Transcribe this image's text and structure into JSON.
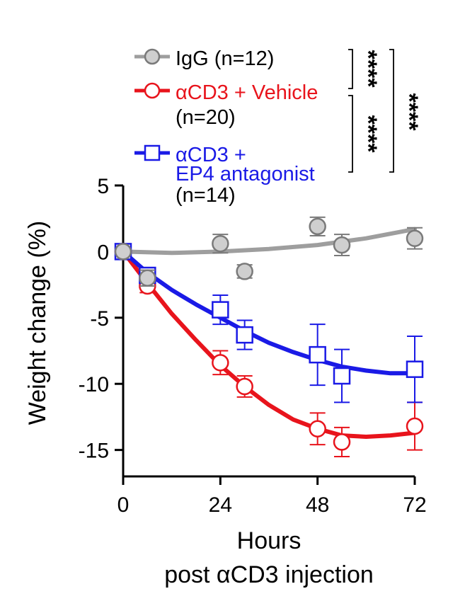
{
  "chart_data": {
    "type": "line",
    "ylabel": "Weight change (%)",
    "xlabel": [
      "Hours",
      "post αCD3 injection"
    ],
    "xlim": [
      0,
      72
    ],
    "ylim": [
      -17,
      5
    ],
    "xticks": [
      0,
      24,
      48,
      72
    ],
    "yticks": [
      5,
      0,
      -5,
      -10,
      -15
    ],
    "grid": false,
    "legend_position": "top",
    "series": [
      {
        "name": "IgG",
        "legend_lines": [
          "IgG (n=12)"
        ],
        "color": "#9e9e9e",
        "marker_fill": "#cfcfcf",
        "marker": "circle",
        "x": [
          0,
          6,
          24,
          30,
          48,
          54,
          72
        ],
        "y": [
          0,
          -2.0,
          0.6,
          -1.5,
          1.9,
          0.5,
          1.0
        ],
        "err": [
          0,
          0.6,
          0.7,
          0.5,
          0.7,
          0.8,
          0.8
        ],
        "fit": [
          [
            0,
            0
          ],
          [
            12,
            -0.1
          ],
          [
            24,
            0
          ],
          [
            36,
            0.2
          ],
          [
            48,
            0.5
          ],
          [
            60,
            1.0
          ],
          [
            72,
            1.7
          ]
        ]
      },
      {
        "name": "αCD3 + Vehicle",
        "legend_lines": [
          "αCD3 + Vehicle",
          "(n=20)"
        ],
        "color": "#e8141c",
        "marker_fill": "#ffffff",
        "marker": "circle",
        "x": [
          0,
          6,
          24,
          30,
          48,
          54,
          72
        ],
        "y": [
          0,
          -2.6,
          -8.4,
          -10.2,
          -13.4,
          -14.4,
          -13.2
        ],
        "err": [
          0,
          0.5,
          0.9,
          0.8,
          1.2,
          1.1,
          1.8
        ],
        "fit": [
          [
            0,
            0
          ],
          [
            6,
            -2.4
          ],
          [
            12,
            -4.7
          ],
          [
            18,
            -6.7
          ],
          [
            24,
            -8.6
          ],
          [
            30,
            -10.2
          ],
          [
            36,
            -11.6
          ],
          [
            42,
            -12.7
          ],
          [
            48,
            -13.4
          ],
          [
            54,
            -13.9
          ],
          [
            60,
            -14.0
          ],
          [
            66,
            -13.9
          ],
          [
            72,
            -13.7
          ]
        ]
      },
      {
        "name": "αCD3 + EP4 antagonist",
        "legend_lines": [
          "αCD3 +",
          "EP4 antagonist",
          "(n=14)"
        ],
        "color": "#1a1ae6",
        "marker_fill": "#ffffff",
        "marker": "square",
        "x": [
          0,
          6,
          24,
          30,
          48,
          54,
          72
        ],
        "y": [
          0,
          -1.8,
          -4.4,
          -6.3,
          -7.8,
          -9.4,
          -8.9
        ],
        "err": [
          0,
          0.5,
          1.1,
          1.1,
          2.3,
          2.0,
          2.5
        ],
        "fit": [
          [
            0,
            0
          ],
          [
            6,
            -1.6
          ],
          [
            12,
            -2.9
          ],
          [
            18,
            -4.0
          ],
          [
            24,
            -5.0
          ],
          [
            30,
            -6.0
          ],
          [
            36,
            -6.9
          ],
          [
            42,
            -7.6
          ],
          [
            48,
            -8.2
          ],
          [
            54,
            -8.7
          ],
          [
            60,
            -9.0
          ],
          [
            66,
            -9.2
          ],
          [
            72,
            -9.2
          ]
        ]
      }
    ],
    "significance": [
      {
        "label": "****",
        "between": [
          "IgG",
          "αCD3 + Vehicle"
        ]
      },
      {
        "label": "****",
        "between": [
          "αCD3 + Vehicle",
          "αCD3 + EP4 antagonist"
        ]
      },
      {
        "label": "****",
        "between": [
          "IgG",
          "αCD3 + EP4 antagonist"
        ]
      }
    ]
  }
}
